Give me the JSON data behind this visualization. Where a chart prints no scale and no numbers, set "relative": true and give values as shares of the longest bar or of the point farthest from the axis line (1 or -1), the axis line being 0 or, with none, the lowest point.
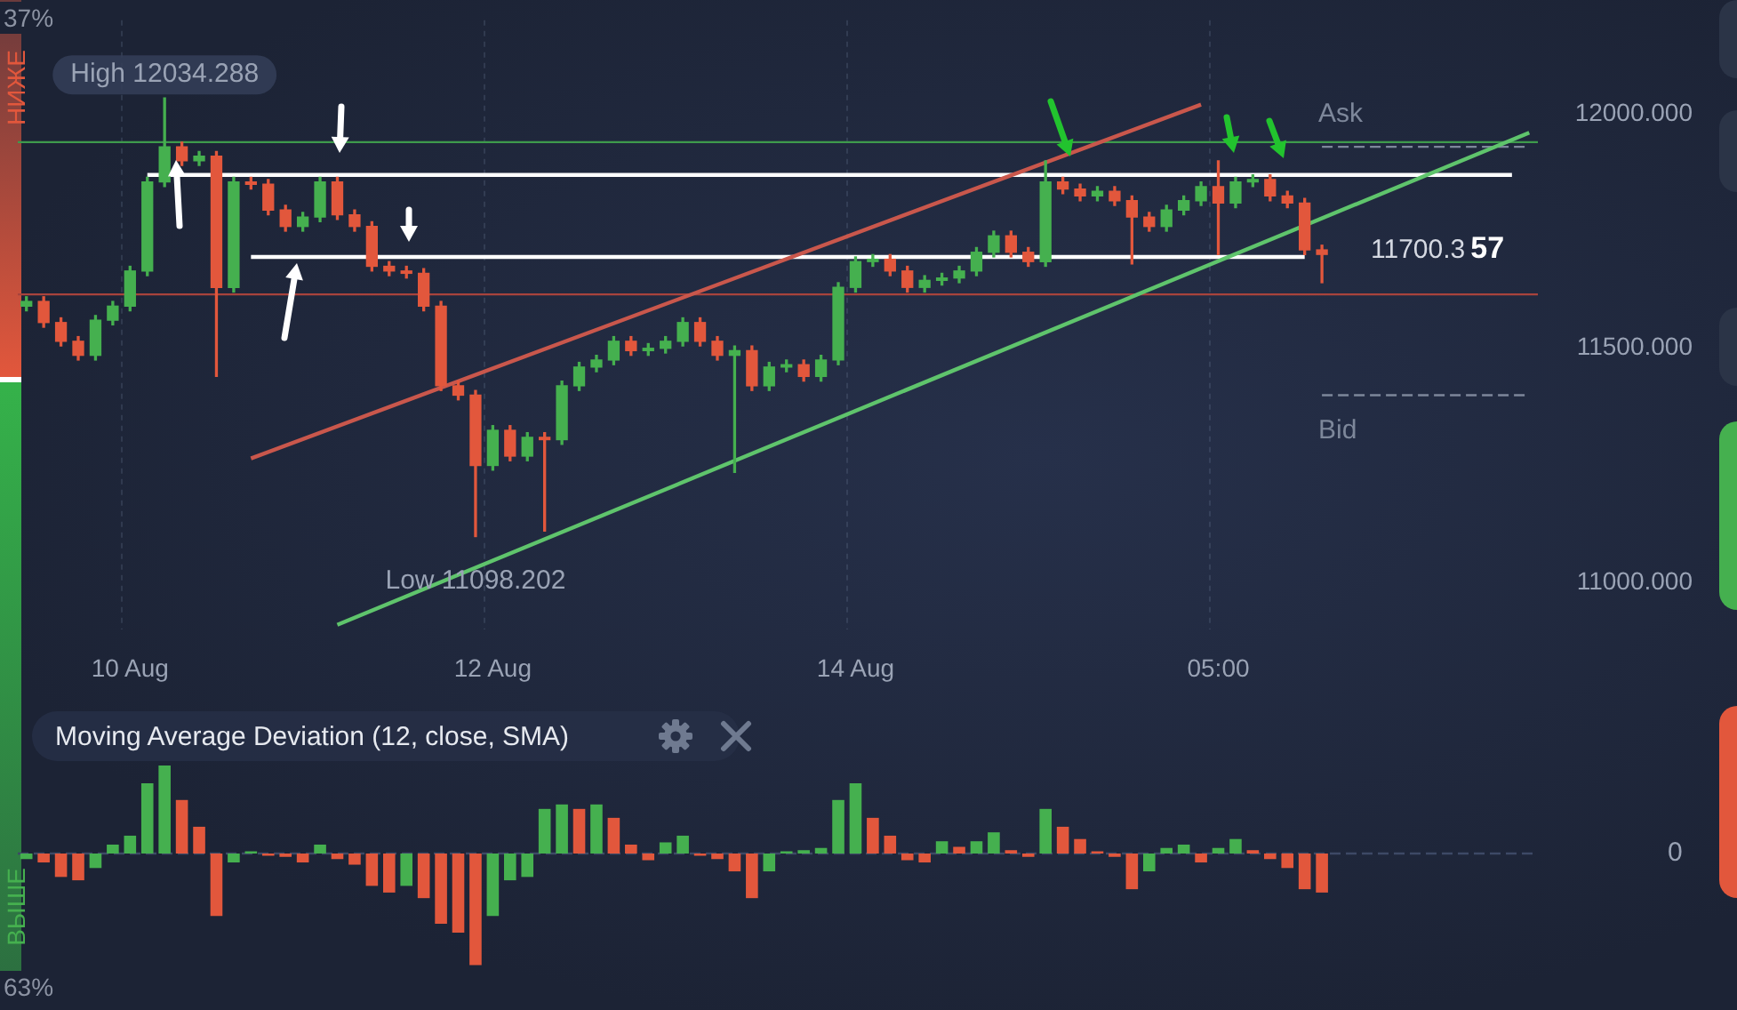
{
  "chart_data": [
    {
      "type": "candlestick",
      "categories": [
        null,
        null,
        null,
        null,
        null,
        null,
        "10 Aug",
        null,
        null,
        null,
        null,
        null,
        null,
        null,
        null,
        null,
        null,
        null,
        null,
        null,
        null,
        null,
        null,
        null,
        null,
        null,
        null,
        "12 Aug",
        null,
        null,
        null,
        null,
        null,
        null,
        null,
        null,
        null,
        null,
        null,
        null,
        null,
        null,
        null,
        null,
        null,
        null,
        null,
        null,
        "14 Aug",
        null,
        null,
        null,
        null,
        null,
        null,
        null,
        null,
        null,
        null,
        null,
        null,
        null,
        null,
        null,
        null,
        null,
        null,
        null,
        null,
        "05:00",
        null,
        null,
        null,
        null,
        null,
        null,
        null,
        null,
        null,
        null,
        null,
        null,
        null,
        null,
        null,
        null,
        null,
        null
      ],
      "ohlc": [
        [
          11590,
          11610,
          11580,
          11600
        ],
        [
          11600,
          11610,
          11545,
          11555
        ],
        [
          11555,
          11565,
          11505,
          11515
        ],
        [
          11515,
          11525,
          11475,
          11485
        ],
        [
          11485,
          11570,
          11475,
          11560
        ],
        [
          11560,
          11600,
          11550,
          11590
        ],
        [
          11590,
          11675,
          11580,
          11665
        ],
        [
          11665,
          11865,
          11655,
          11855
        ],
        [
          11855,
          12034.288,
          11845,
          11930
        ],
        [
          11930,
          11940,
          11890,
          11900
        ],
        [
          11900,
          11920,
          11890,
          11910
        ],
        [
          11910,
          11920,
          11440,
          11630
        ],
        [
          11630,
          11865,
          11620,
          11855
        ],
        [
          11855,
          11865,
          11840,
          11850
        ],
        [
          11850,
          11860,
          11785,
          11795
        ],
        [
          11795,
          11805,
          11750,
          11760
        ],
        [
          11760,
          11790,
          11750,
          11780
        ],
        [
          11780,
          11865,
          11770,
          11855
        ],
        [
          11855,
          11865,
          11775,
          11785
        ],
        [
          11785,
          11795,
          11750,
          11760
        ],
        [
          11760,
          11770,
          11665,
          11675
        ],
        [
          11675,
          11685,
          11655,
          11665
        ],
        [
          11665,
          11675,
          11650,
          11660
        ],
        [
          11660,
          11670,
          11580,
          11590
        ],
        [
          11590,
          11600,
          11410,
          11420
        ],
        [
          11420,
          11430,
          11390,
          11400
        ],
        [
          11400,
          11410,
          11098.202,
          11250
        ],
        [
          11250,
          11335,
          11240,
          11325
        ],
        [
          11325,
          11335,
          11260,
          11270
        ],
        [
          11270,
          11320,
          11260,
          11310
        ],
        [
          11310,
          11320,
          11110,
          11305
        ],
        [
          11305,
          11430,
          11295,
          11420
        ],
        [
          11420,
          11470,
          11410,
          11460
        ],
        [
          11460,
          11485,
          11450,
          11475
        ],
        [
          11475,
          11525,
          11465,
          11515
        ],
        [
          11515,
          11525,
          11485,
          11495
        ],
        [
          11495,
          11510,
          11485,
          11500
        ],
        [
          11500,
          11525,
          11490,
          11515
        ],
        [
          11515,
          11565,
          11505,
          11555
        ],
        [
          11555,
          11565,
          11505,
          11515
        ],
        [
          11515,
          11525,
          11475,
          11485
        ],
        [
          11485,
          11505,
          11235,
          11495
        ],
        [
          11495,
          11505,
          11410,
          11420
        ],
        [
          11420,
          11470,
          11410,
          11460
        ],
        [
          11460,
          11475,
          11450,
          11465
        ],
        [
          11465,
          11475,
          11430,
          11440
        ],
        [
          11440,
          11485,
          11430,
          11475
        ],
        [
          11475,
          11640,
          11465,
          11630
        ],
        [
          11630,
          11695,
          11620,
          11685
        ],
        [
          11685,
          11700,
          11675,
          11690
        ],
        [
          11690,
          11700,
          11655,
          11665
        ],
        [
          11665,
          11675,
          11620,
          11630
        ],
        [
          11630,
          11655,
          11620,
          11645
        ],
        [
          11645,
          11660,
          11635,
          11650
        ],
        [
          11650,
          11675,
          11640,
          11665
        ],
        [
          11665,
          11715,
          11655,
          11705
        ],
        [
          11705,
          11750,
          11695,
          11740
        ],
        [
          11740,
          11750,
          11695,
          11705
        ],
        [
          11705,
          11715,
          11675,
          11685
        ],
        [
          11685,
          11900,
          11675,
          11855
        ],
        [
          11855,
          11865,
          11830,
          11840
        ],
        [
          11840,
          11850,
          11815,
          11825
        ],
        [
          11825,
          11845,
          11815,
          11835
        ],
        [
          11835,
          11845,
          11805,
          11815
        ],
        [
          11815,
          11825,
          11680,
          11780
        ],
        [
          11780,
          11790,
          11750,
          11760
        ],
        [
          11760,
          11805,
          11750,
          11795
        ],
        [
          11795,
          11825,
          11785,
          11815
        ],
        [
          11815,
          11855,
          11805,
          11845
        ],
        [
          11845,
          11900,
          11700,
          11810
        ],
        [
          11810,
          11865,
          11800,
          11855
        ],
        [
          11855,
          11870,
          11845,
          11860
        ],
        [
          11860,
          11870,
          11815,
          11825
        ],
        [
          11825,
          11835,
          11800,
          11810
        ],
        [
          11810,
          11820,
          11700,
          11710
        ],
        [
          11710,
          11720,
          11640,
          11700.357
        ],
        null,
        null,
        null,
        null,
        null,
        null,
        null,
        null,
        null,
        null,
        null,
        null
      ],
      "colors": [
        "#45b04f",
        "#e2573c",
        "#e2573c",
        "#e2573c",
        "#45b04f",
        "#45b04f",
        "#45b04f",
        "#45b04f",
        "#45b04f",
        "#e2573c",
        "#45b04f",
        "#e2573c",
        "#45b04f",
        "#e2573c",
        "#e2573c",
        "#e2573c",
        "#45b04f",
        "#45b04f",
        "#e2573c",
        "#e2573c",
        "#e2573c",
        "#e2573c",
        "#e2573c",
        "#e2573c",
        "#e2573c",
        "#e2573c",
        "#e2573c",
        "#45b04f",
        "#e2573c",
        "#45b04f",
        "#e2573c",
        "#45b04f",
        "#45b04f",
        "#45b04f",
        "#45b04f",
        "#e2573c",
        "#45b04f",
        "#45b04f",
        "#45b04f",
        "#e2573c",
        "#e2573c",
        "#45b04f",
        "#e2573c",
        "#45b04f",
        "#45b04f",
        "#e2573c",
        "#45b04f",
        "#45b04f",
        "#45b04f",
        "#45b04f",
        "#e2573c",
        "#e2573c",
        "#45b04f",
        "#45b04f",
        "#45b04f",
        "#45b04f",
        "#45b04f",
        "#e2573c",
        "#e2573c",
        "#45b04f",
        "#e2573c",
        "#e2573c",
        "#45b04f",
        "#e2573c",
        "#e2573c",
        "#e2573c",
        "#45b04f",
        "#45b04f",
        "#45b04f",
        "#e2573c",
        "#45b04f",
        "#45b04f",
        "#e2573c",
        "#e2573c",
        "#e2573c",
        "#e2573c",
        null,
        null,
        null,
        null,
        null,
        null,
        null,
        null,
        null,
        null,
        null,
        null
      ],
      "series": [
        {
          "type": "line",
          "color": "#c9574c",
          "values": [
            null,
            null,
            null,
            null,
            null,
            null,
            null,
            null,
            null,
            null,
            null,
            null,
            null,
            11265,
            null,
            null,
            null,
            null,
            null,
            null,
            null,
            null,
            null,
            null,
            null,
            null,
            null,
            null,
            null,
            null,
            null,
            null,
            null,
            null,
            null,
            null,
            null,
            null,
            null,
            null,
            null,
            null,
            null,
            null,
            null,
            null,
            null,
            null,
            null,
            null,
            null,
            null,
            null,
            null,
            null,
            null,
            null,
            null,
            null,
            null,
            null,
            null,
            null,
            null,
            null,
            null,
            null,
            null,
            12020,
            null,
            null,
            null,
            null,
            null,
            null,
            null,
            null,
            null,
            null,
            null,
            null,
            null,
            null,
            null,
            null,
            null,
            null,
            null
          ]
        },
        {
          "type": "line",
          "color": "#5fc46c",
          "values": [
            null,
            null,
            null,
            null,
            null,
            null,
            null,
            null,
            null,
            null,
            null,
            null,
            null,
            null,
            null,
            null,
            null,
            null,
            10910,
            null,
            null,
            null,
            null,
            null,
            null,
            null,
            null,
            null,
            null,
            null,
            null,
            null,
            null,
            null,
            null,
            null,
            null,
            null,
            null,
            null,
            null,
            null,
            null,
            null,
            null,
            null,
            null,
            null,
            null,
            null,
            null,
            null,
            null,
            null,
            null,
            null,
            null,
            null,
            null,
            null,
            null,
            null,
            null,
            null,
            null,
            null,
            null,
            null,
            null,
            null,
            null,
            null,
            null,
            null,
            null,
            null,
            null,
            null,
            null,
            null,
            null,
            null,
            null,
            null,
            null,
            null,
            null,
            11960
          ]
        },
        {
          "type": "line",
          "color": "#ffffff",
          "values": [
            null,
            null,
            null,
            null,
            null,
            null,
            null,
            11870,
            null,
            null,
            null,
            null,
            null,
            null,
            null,
            null,
            null,
            null,
            null,
            null,
            null,
            null,
            null,
            null,
            null,
            null,
            null,
            null,
            null,
            null,
            null,
            null,
            null,
            null,
            null,
            null,
            null,
            null,
            null,
            null,
            null,
            null,
            null,
            null,
            null,
            null,
            null,
            null,
            null,
            null,
            null,
            null,
            null,
            null,
            null,
            null,
            null,
            null,
            null,
            null,
            null,
            null,
            null,
            null,
            null,
            null,
            null,
            null,
            null,
            null,
            null,
            null,
            null,
            null,
            null,
            null,
            null,
            null,
            null,
            null,
            null,
            null,
            null,
            null,
            null,
            null,
            11870,
            null
          ]
        },
        {
          "type": "line",
          "color": "#ffffff",
          "values": [
            null,
            null,
            null,
            null,
            null,
            null,
            null,
            null,
            null,
            null,
            null,
            null,
            null,
            11695,
            null,
            null,
            null,
            null,
            null,
            null,
            null,
            null,
            null,
            null,
            null,
            null,
            null,
            null,
            null,
            null,
            null,
            null,
            null,
            null,
            null,
            null,
            null,
            null,
            null,
            null,
            null,
            null,
            null,
            null,
            null,
            null,
            null,
            null,
            null,
            null,
            null,
            null,
            null,
            null,
            null,
            null,
            null,
            null,
            null,
            null,
            null,
            null,
            null,
            null,
            null,
            null,
            null,
            null,
            null,
            null,
            null,
            null,
            null,
            null,
            11695,
            null,
            null,
            null,
            null,
            null,
            null,
            null,
            null,
            null,
            null,
            null,
            null,
            null
          ]
        },
        {
          "type": "line",
          "name": "Ask",
          "color": "#7d879a",
          "line_style": "dashed",
          "values": [
            null,
            null,
            null,
            null,
            null,
            null,
            null,
            null,
            null,
            null,
            null,
            null,
            null,
            null,
            null,
            null,
            null,
            null,
            null,
            null,
            null,
            null,
            null,
            null,
            null,
            null,
            null,
            null,
            null,
            null,
            null,
            null,
            null,
            null,
            null,
            null,
            null,
            null,
            null,
            null,
            null,
            null,
            null,
            null,
            null,
            null,
            null,
            null,
            null,
            null,
            null,
            null,
            null,
            null,
            null,
            null,
            null,
            null,
            null,
            null,
            null,
            null,
            null,
            null,
            null,
            null,
            null,
            null,
            null,
            null,
            null,
            null,
            null,
            null,
            null,
            11930,
            null,
            null,
            null,
            null,
            null,
            null,
            null,
            null,
            null,
            null,
            null,
            11930
          ]
        },
        {
          "type": "line",
          "name": "Bid",
          "color": "#7d879a",
          "line_style": "dashed",
          "values": [
            null,
            null,
            null,
            null,
            null,
            null,
            null,
            null,
            null,
            null,
            null,
            null,
            null,
            null,
            null,
            null,
            null,
            null,
            null,
            null,
            null,
            null,
            null,
            null,
            null,
            null,
            null,
            null,
            null,
            null,
            null,
            null,
            null,
            null,
            null,
            null,
            null,
            null,
            null,
            null,
            null,
            null,
            null,
            null,
            null,
            null,
            null,
            null,
            null,
            null,
            null,
            null,
            null,
            null,
            null,
            null,
            null,
            null,
            null,
            null,
            null,
            null,
            null,
            null,
            null,
            null,
            null,
            null,
            null,
            null,
            null,
            null,
            null,
            null,
            null,
            11400,
            null,
            null,
            null,
            null,
            null,
            null,
            null,
            null,
            null,
            null,
            null,
            11400
          ]
        }
      ],
      "ylim": [
        10900,
        12200
      ],
      "yticks": [
        {
          "value": 11000,
          "label": "11000.000"
        },
        {
          "value": 11500,
          "label": "11500.000"
        },
        {
          "value": 12000,
          "label": "12000.000"
        }
      ],
      "grid": "x",
      "ref_lines": [
        {
          "axis": "y",
          "value": 11940,
          "color": "#3e9a4c"
        },
        {
          "axis": "y",
          "value": 11615,
          "color": "#a8433c"
        }
      ],
      "annotations": [
        "37%",
        "НИЖЕ",
        "ВЫШЕ",
        "63%",
        {
          "text": "High 12034.288",
          "y": 12034.288
        },
        {
          "text": "Low 11098.202",
          "y": 11098.202
        },
        "11700.357"
      ]
    },
    {
      "type": "bar",
      "title": "Moving Average Deviation (12, close, SMA)",
      "relative": true,
      "categories": [
        null,
        null,
        null,
        null,
        null,
        null,
        null,
        null,
        null,
        null,
        null,
        null,
        null,
        null,
        null,
        null,
        null,
        null,
        null,
        null,
        null,
        null,
        null,
        null,
        null,
        null,
        null,
        null,
        null,
        null,
        null,
        null,
        null,
        null,
        null,
        null,
        null,
        null,
        null,
        null,
        null,
        null,
        null,
        null,
        null,
        null,
        null,
        null,
        null,
        null,
        null,
        null,
        null,
        null,
        null,
        null,
        null,
        null,
        null,
        null,
        null,
        null,
        null,
        null,
        null,
        null,
        null,
        null,
        null,
        null,
        null,
        null,
        null,
        null,
        null,
        null,
        null,
        null,
        null,
        null,
        null,
        null,
        null,
        null,
        null,
        null,
        null,
        null
      ],
      "values": [
        -0.05,
        -0.08,
        -0.21,
        -0.24,
        -0.13,
        0.08,
        0.16,
        0.63,
        0.79,
        0.48,
        0.24,
        -0.56,
        -0.08,
        0.02,
        -0.02,
        -0.03,
        -0.08,
        0.08,
        -0.05,
        -0.1,
        -0.29,
        -0.35,
        -0.29,
        -0.4,
        -0.63,
        -0.71,
        -1,
        -0.56,
        -0.24,
        -0.21,
        0.4,
        0.44,
        0.4,
        0.44,
        0.32,
        0.08,
        -0.06,
        0.1,
        0.16,
        -0.02,
        -0.05,
        -0.16,
        -0.4,
        -0.16,
        0.02,
        0.03,
        0.05,
        0.48,
        0.63,
        0.32,
        0.16,
        -0.06,
        -0.08,
        0.11,
        0.06,
        0.11,
        0.19,
        0.03,
        -0.03,
        0.4,
        0.24,
        0.13,
        0.02,
        -0.03,
        -0.32,
        -0.16,
        0.05,
        0.08,
        -0.08,
        0.05,
        0.13,
        0.03,
        -0.05,
        -0.13,
        -0.32,
        -0.35,
        null,
        null,
        null,
        null,
        null,
        null,
        null,
        null,
        null,
        null,
        null,
        null
      ],
      "colors": [
        "#45b04f",
        "#e2573c",
        "#e2573c",
        "#e2573c",
        "#45b04f",
        "#45b04f",
        "#45b04f",
        "#45b04f",
        "#45b04f",
        "#e2573c",
        "#e2573c",
        "#e2573c",
        "#45b04f",
        "#45b04f",
        "#e2573c",
        "#e2573c",
        "#e2573c",
        "#45b04f",
        "#e2573c",
        "#e2573c",
        "#e2573c",
        "#e2573c",
        "#45b04f",
        "#e2573c",
        "#e2573c",
        "#e2573c",
        "#e2573c",
        "#45b04f",
        "#45b04f",
        "#45b04f",
        "#45b04f",
        "#45b04f",
        "#e2573c",
        "#45b04f",
        "#e2573c",
        "#e2573c",
        "#e2573c",
        "#45b04f",
        "#45b04f",
        "#e2573c",
        "#e2573c",
        "#e2573c",
        "#e2573c",
        "#45b04f",
        "#45b04f",
        "#45b04f",
        "#45b04f",
        "#45b04f",
        "#45b04f",
        "#e2573c",
        "#e2573c",
        "#e2573c",
        "#e2573c",
        "#45b04f",
        "#e2573c",
        "#45b04f",
        "#45b04f",
        "#e2573c",
        "#e2573c",
        "#45b04f",
        "#e2573c",
        "#e2573c",
        "#e2573c",
        "#e2573c",
        "#e2573c",
        "#45b04f",
        "#45b04f",
        "#45b04f",
        "#e2573c",
        "#45b04f",
        "#45b04f",
        "#e2573c",
        "#e2573c",
        "#e2573c",
        "#e2573c",
        "#e2573c",
        null,
        null,
        null,
        null,
        null,
        null,
        null,
        null,
        null,
        null,
        null,
        null
      ],
      "ref_lines": [
        {
          "axis": "y",
          "value": 0,
          "color": "#3d4966",
          "line_style": "dashed"
        }
      ],
      "annotations": [
        "0"
      ]
    }
  ]
}
